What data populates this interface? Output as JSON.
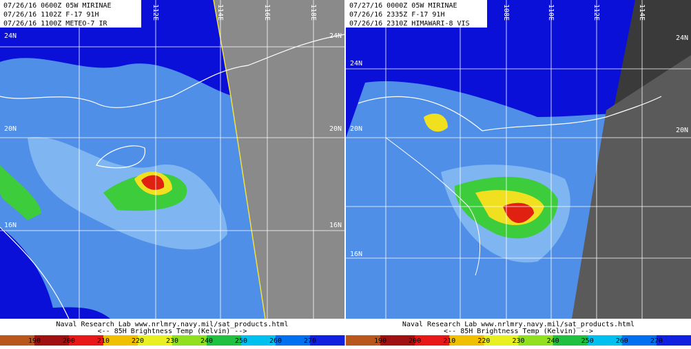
{
  "panels": [
    {
      "header": [
        "07/26/16 0600Z 05W MIRINAE",
        "07/26/16 1102Z F-17 91H",
        "07/26/16 1100Z METEO-7 IR"
      ],
      "lon_labels": [
        "112E",
        "114E",
        "116E",
        "118E"
      ],
      "lat_labels": [
        "24N",
        "20N",
        "16N"
      ],
      "right_lat_labels": [
        "24N",
        "20N",
        "16N"
      ],
      "footer": [
        "Naval Research Lab  www.nrlmry.navy.mil/sat_products.html",
        "<--   85H Brightness Temp (Kelvin)   -->"
      ],
      "colorbar": [
        190,
        200,
        210,
        220,
        230,
        240,
        250,
        260,
        270
      ]
    },
    {
      "header": [
        "07/27/16 0000Z 05W MIRINAE",
        "07/26/16 2335Z F-17 91H",
        "07/26/16 2310Z HIMAWARI-8 VIS"
      ],
      "lon_labels": [
        "108E",
        "110E",
        "112E",
        "114E"
      ],
      "lat_labels": [
        "24N",
        "20N",
        "16N"
      ],
      "right_lat_labels": [
        "24N",
        "20N"
      ],
      "footer": [
        "Naval Research Lab  www.nrlmry.navy.mil/sat_products.html",
        "<--   85H Brightness Temp (Kelvin)   -->"
      ],
      "colorbar": [
        190,
        200,
        210,
        220,
        230,
        240,
        250,
        260,
        270
      ]
    }
  ]
}
